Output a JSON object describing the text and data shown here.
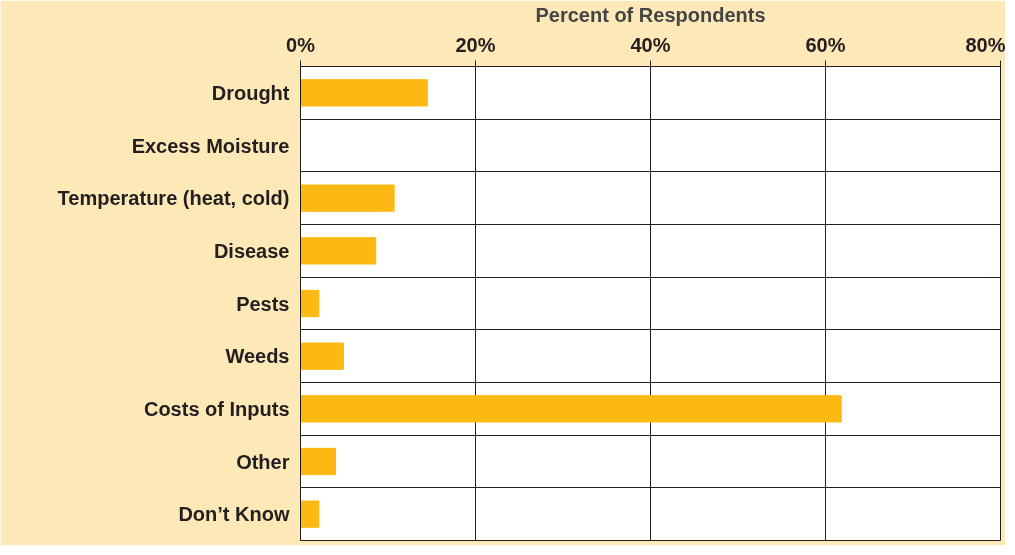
{
  "chart_data": {
    "type": "bar",
    "orientation": "horizontal",
    "xlabel": "Percent of Respondents",
    "categories": [
      "Drought",
      "Excess Moisture",
      "Temperature (heat, cold)",
      "Disease",
      "Pests",
      "Weeds",
      "Costs of Inputs",
      "Other",
      "Don’t Know"
    ],
    "values": [
      14.5,
      0,
      10.7,
      8.6,
      2.1,
      4.9,
      61.8,
      4.0,
      2.1
    ],
    "color": "#fdb913",
    "xlim": [
      0,
      80
    ],
    "xticks": [
      {
        "value": 0,
        "label": "0%"
      },
      {
        "value": 20,
        "label": "20%"
      },
      {
        "value": 40,
        "label": "40%"
      },
      {
        "value": 60,
        "label": "60%"
      },
      {
        "value": 80,
        "label": "80%"
      }
    ],
    "grid": true
  }
}
